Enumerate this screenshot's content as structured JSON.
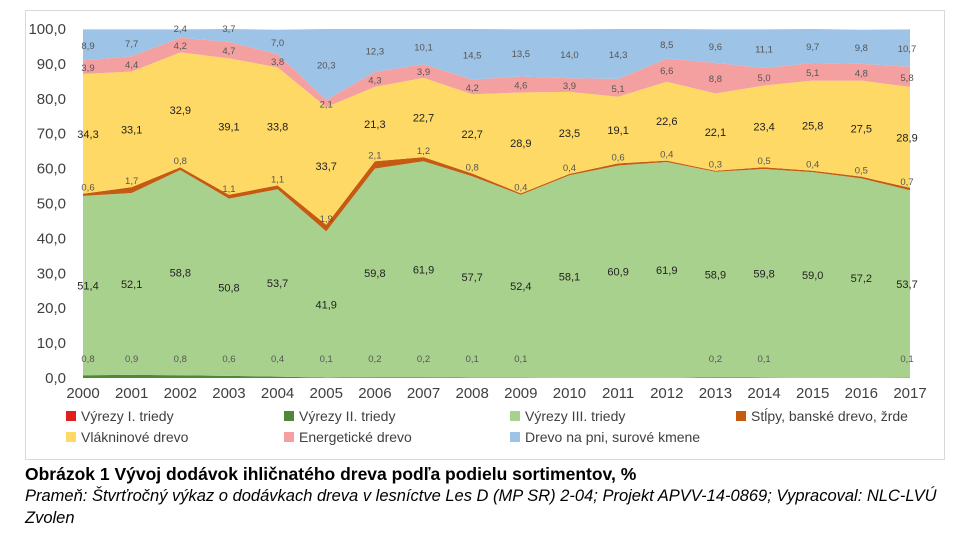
{
  "chart_data": {
    "type": "area",
    "stacked": true,
    "title": "",
    "xlabel": "",
    "ylabel": "",
    "ylim": [
      0,
      100
    ],
    "yticks": [
      "0,0",
      "10,0",
      "20,0",
      "30,0",
      "40,0",
      "50,0",
      "60,0",
      "70,0",
      "80,0",
      "90,0",
      "100,0"
    ],
    "grid": false,
    "legend_position": "bottom",
    "categories": [
      "2000",
      "2001",
      "2002",
      "2003",
      "2004",
      "2005",
      "2006",
      "2007",
      "2008",
      "2009",
      "2010",
      "2011",
      "2012",
      "2013",
      "2014",
      "2015",
      "2016",
      "2017"
    ],
    "series": [
      {
        "name": "Výrezy I. triedy",
        "color": "#e0201c",
        "values": [
          0,
          0,
          0,
          0,
          0,
          0,
          0,
          0,
          0,
          0,
          0,
          0,
          0,
          0,
          0,
          0,
          0,
          0
        ],
        "labels": []
      },
      {
        "name": "Výrezy II. triedy",
        "color": "#4e8a35",
        "values": [
          0.8,
          0.9,
          0.8,
          0.6,
          0.4,
          0.1,
          0.2,
          0.2,
          0.1,
          0.1,
          0,
          0,
          0,
          0.2,
          0.1,
          0,
          0,
          0.1
        ],
        "labels": [
          "0,8",
          "0,9",
          "0,8",
          "0,6",
          "0,4",
          "0,1",
          "0,2",
          "0,2",
          "0,1",
          "0,1",
          "",
          "",
          "",
          "0,2",
          "0,1",
          "",
          "",
          "0,1"
        ]
      },
      {
        "name": "Výrezy III. triedy",
        "color": "#a9d18e",
        "values": [
          51.4,
          52.1,
          58.8,
          50.8,
          53.7,
          41.9,
          59.8,
          61.9,
          57.7,
          52.4,
          58.1,
          60.9,
          61.9,
          58.9,
          59.8,
          59.0,
          57.2,
          53.7
        ],
        "labels": [
          "51,4",
          "52,1",
          "58,8",
          "50,8",
          "53,7",
          "41,9",
          "59,8",
          "61,9",
          "57,7",
          "52,4",
          "58,1",
          "60,9",
          "61,9",
          "58,9",
          "59,8",
          "59,0",
          "57,2",
          "53,7"
        ]
      },
      {
        "name": "Stĺpy, banské drevo, žrde",
        "color": "#c55a11",
        "values": [
          0.6,
          1.7,
          0.8,
          1.1,
          1.1,
          1.9,
          2.1,
          1.2,
          0.8,
          0.4,
          0.4,
          0.6,
          0.4,
          0.3,
          0.5,
          0.4,
          0.5,
          0.7
        ],
        "labels": [
          "0,6",
          "1,7",
          "0,8",
          "1,1",
          "1,1",
          "1,9",
          "2,1",
          "1,2",
          "0,8",
          "0,4",
          "0,4",
          "0,6",
          "0,4",
          "0,3",
          "0,5",
          "0,4",
          "0,5",
          "0,7"
        ]
      },
      {
        "name": "Vlákninové drevo",
        "color": "#ffd966",
        "values": [
          34.3,
          33.1,
          32.9,
          39.1,
          33.8,
          33.7,
          21.3,
          22.7,
          22.7,
          28.9,
          23.5,
          19.1,
          22.6,
          22.1,
          23.4,
          25.8,
          27.5,
          28.9
        ],
        "labels": [
          "34,3",
          "33,1",
          "32,9",
          "39,1",
          "33,8",
          "33,7",
          "21,3",
          "22,7",
          "22,7",
          "28,9",
          "23,5",
          "19,1",
          "22,6",
          "22,1",
          "23,4",
          "25,8",
          "27,5",
          "28,9"
        ]
      },
      {
        "name": "Energetické drevo",
        "color": "#f4a0a0",
        "values": [
          3.9,
          4.4,
          4.2,
          4.7,
          3.8,
          2.1,
          4.3,
          3.9,
          4.2,
          4.6,
          3.9,
          5.1,
          6.6,
          8.8,
          5.0,
          5.1,
          4.8,
          5.8
        ],
        "labels": [
          "3,9",
          "4,4",
          "4,2",
          "4,7",
          "3,8",
          "2,1",
          "4,3",
          "3,9",
          "4,2",
          "4,6",
          "3,9",
          "5,1",
          "6,6",
          "8,8",
          "5,0",
          "5,1",
          "4,8",
          "5,8"
        ]
      },
      {
        "name": "Drevo na pni, surové kmene",
        "color": "#9dc3e6",
        "values": [
          8.9,
          7.7,
          2.4,
          3.7,
          7.0,
          20.3,
          12.3,
          10.1,
          14.5,
          13.5,
          14.0,
          14.3,
          8.5,
          9.6,
          11.1,
          9.7,
          9.8,
          10.7
        ],
        "labels": [
          "8,9",
          "7,7",
          "2,4",
          "3,7",
          "7,0",
          "20,3",
          "12,3",
          "10,1",
          "14,5",
          "13,5",
          "14,0",
          "14,3",
          "8,5",
          "9,6",
          "11,1",
          "9,7",
          "9,8",
          "10,7"
        ]
      }
    ]
  },
  "caption": {
    "title": "Obrázok 1 Vývoj dodávok ihličnatého dreva podľa podielu sortimentov, %",
    "source": "Prameň: Štvrťročný výkaz o dodávkach dreva v lesníctve Les D (MP SR) 2-04; Projekt APVV-14-0869; Vypracoval: NLC-LVÚ Zvolen"
  }
}
